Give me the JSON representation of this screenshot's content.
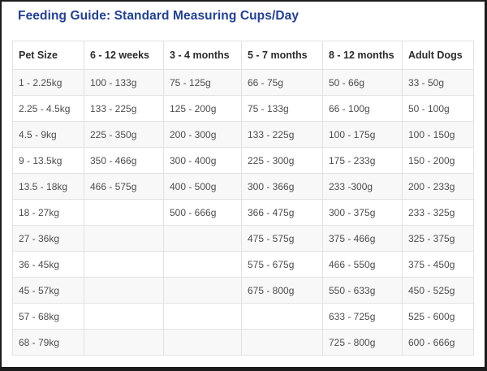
{
  "page": {
    "title": "Feeding Guide: Standard Measuring Cups/Day"
  },
  "table": {
    "headers": [
      "Pet Size",
      "6 - 12 weeks",
      "3 - 4 months",
      "5 - 7 months",
      "8 - 12 months",
      "Adult Dogs"
    ],
    "rows": [
      [
        "1 - 2.25kg",
        "100 - 133g",
        "75 - 125g",
        "66 - 75g",
        "50 - 66g",
        "33 - 50g"
      ],
      [
        "2.25 - 4.5kg",
        "133 - 225g",
        "125 - 200g",
        "75 - 133g",
        "66 - 100g",
        "50 - 100g"
      ],
      [
        "4.5 - 9kg",
        "225 - 350g",
        "200 - 300g",
        "133 - 225g",
        "100 - 175g",
        "100 - 150g"
      ],
      [
        "9 - 13.5kg",
        "350 - 466g",
        "300 - 400g",
        "225 - 300g",
        "175 - 233g",
        "150 - 200g"
      ],
      [
        "13.5 - 18kg",
        "466 - 575g",
        "400 - 500g",
        "300 - 366g",
        "233 -300g",
        "200 - 233g"
      ],
      [
        "18 - 27kg",
        "",
        "500 - 666g",
        "366 - 475g",
        "300 - 375g",
        "233 - 325g"
      ],
      [
        "27 - 36kg",
        "",
        "",
        "475 - 575g",
        "375 - 466g",
        "325 - 375g"
      ],
      [
        "36 - 45kg",
        "",
        "",
        "575 - 675g",
        "466 - 550g",
        "375 - 450g"
      ],
      [
        "45 - 57kg",
        "",
        "",
        "675 - 800g",
        "550 - 633g",
        "450 - 525g"
      ],
      [
        "57 - 68kg",
        "",
        "",
        "",
        "633 - 725g",
        "525 - 600g"
      ],
      [
        "68 - 79kg",
        "",
        "",
        "",
        "725 - 800g",
        "600 - 666g"
      ]
    ]
  },
  "colors": {
    "title": "#21409a",
    "header_text": "#2b2b2b",
    "cell_text": "#4d4d4d",
    "border": "#e2e2e2",
    "stripe": "#f8f8f8",
    "frame": "#1c1c1c"
  }
}
